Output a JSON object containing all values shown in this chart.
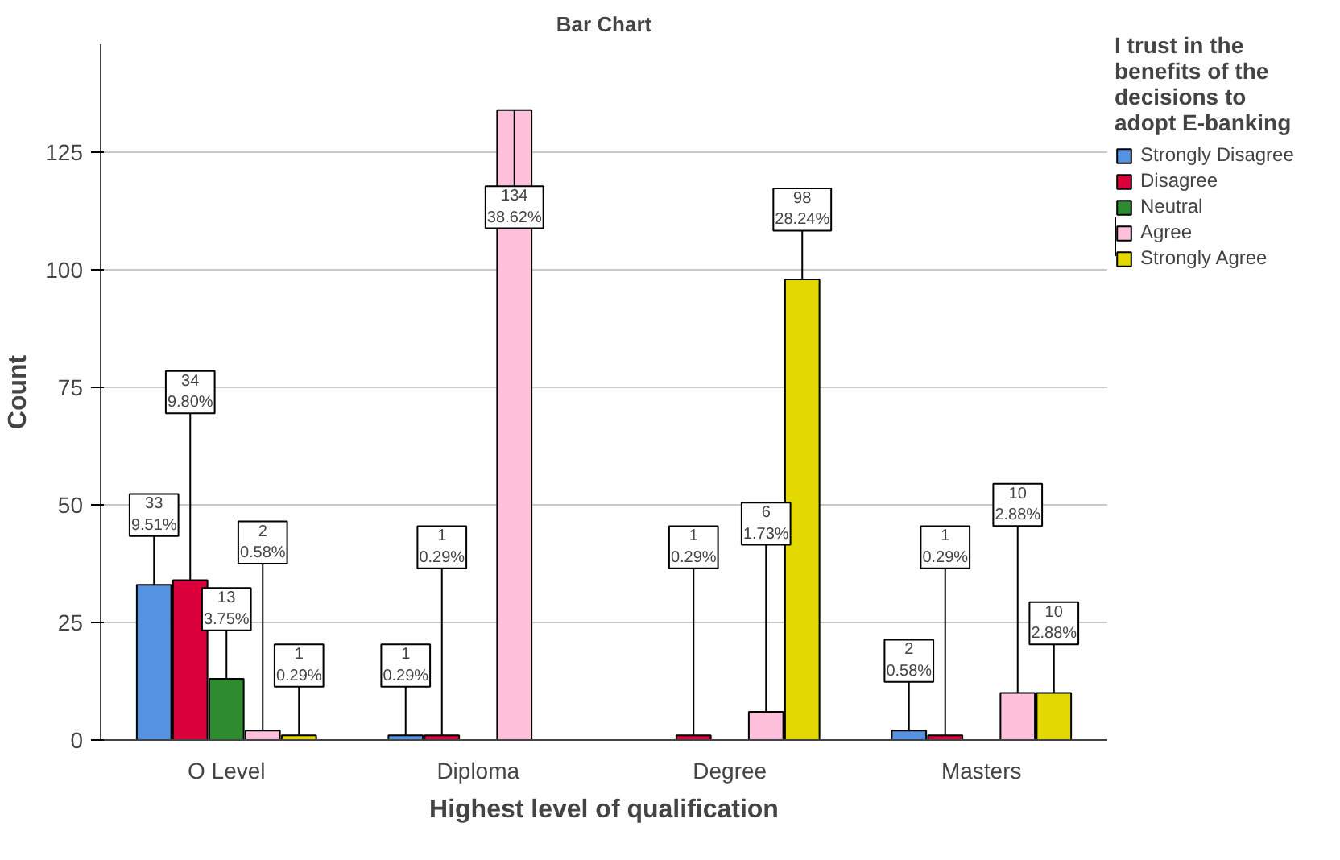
{
  "chart_data": {
    "type": "bar",
    "title": "Bar Chart",
    "xlabel": "Highest level of qualification",
    "ylabel": "Count",
    "legend_title": "I trust in the benefits of the decisions to adopt E-banking",
    "categories": [
      "O Level",
      "Diploma",
      "Degree",
      "Masters"
    ],
    "series": [
      {
        "name": "Strongly Disagree",
        "color": "#5592e0",
        "values": [
          33,
          1,
          null,
          2
        ],
        "value_labels": [
          "33\n9.51%",
          "1\n0.29%",
          null,
          "2\n0.58%"
        ]
      },
      {
        "name": "Disagree",
        "color": "#d9003b",
        "values": [
          34,
          1,
          1,
          1
        ],
        "value_labels": [
          "34\n9.80%",
          "1\n0.29%",
          "1\n0.29%",
          "1\n0.29%"
        ]
      },
      {
        "name": "Neutral",
        "color": "#2e8b30",
        "values": [
          13,
          null,
          null,
          null
        ],
        "value_labels": [
          "13\n3.75%",
          null,
          null,
          null
        ]
      },
      {
        "name": "Agree",
        "color": "#ffc0dc",
        "values": [
          2,
          134,
          6,
          10
        ],
        "value_labels": [
          "2\n0.58%",
          "134\n38.62%",
          "6\n1.73%",
          "10\n2.88%"
        ]
      },
      {
        "name": "Strongly Agree",
        "color": "#e3d800",
        "values": [
          1,
          null,
          98,
          10
        ],
        "value_labels": [
          "1\n0.29%",
          null,
          "98\n28.24%",
          "10\n2.88%"
        ]
      }
    ],
    "ylim": [
      0,
      148
    ],
    "yticks": [
      0,
      25,
      50,
      75,
      100,
      125
    ],
    "grid": "y",
    "legend": "right"
  }
}
